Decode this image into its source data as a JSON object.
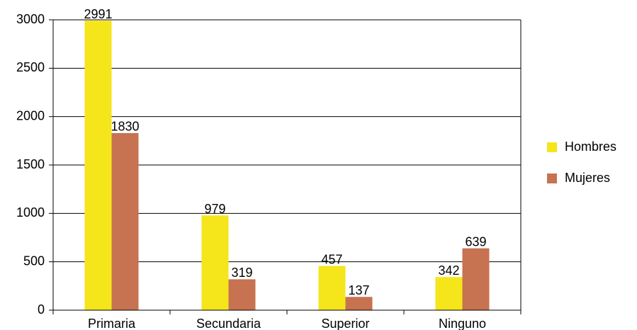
{
  "chart_data": {
    "type": "bar",
    "categories": [
      "Primaria",
      "Secundaria",
      "Superior",
      "Ninguno"
    ],
    "series": [
      {
        "name": "Hombres",
        "color": "#f5e51b",
        "values": [
          2991,
          979,
          457,
          342
        ]
      },
      {
        "name": "Mujeres",
        "color": "#c77250",
        "values": [
          1830,
          319,
          137,
          639
        ]
      }
    ],
    "ylim": [
      0,
      3000
    ],
    "yticks": [
      0,
      500,
      1000,
      1500,
      2000,
      2500,
      3000
    ],
    "grid": true,
    "legend": "right"
  }
}
